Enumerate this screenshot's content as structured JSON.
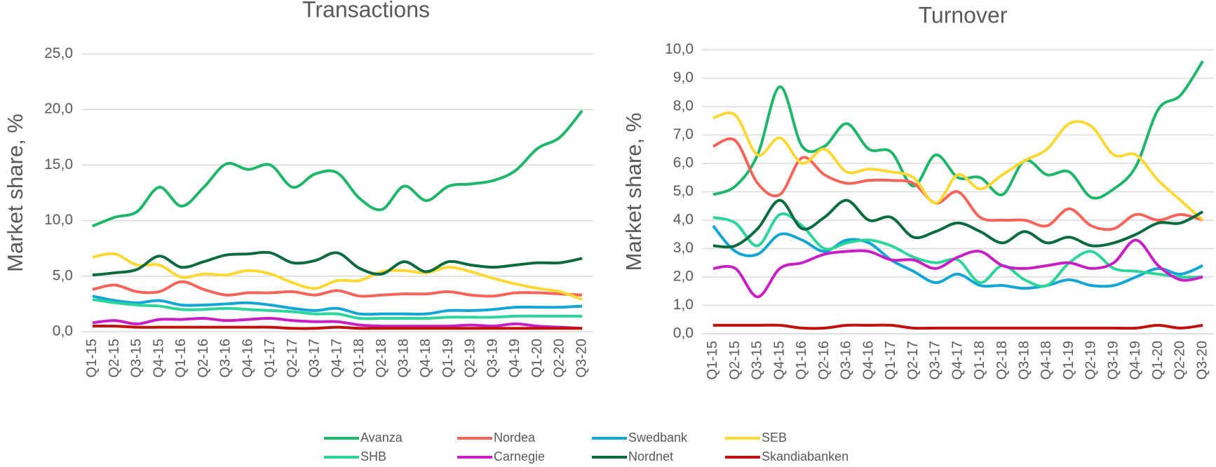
{
  "chart_data": [
    {
      "type": "line",
      "title": "Transactions",
      "y_label": "Market share, %",
      "categories": [
        "Q1-15",
        "Q2-15",
        "Q3-15",
        "Q4-15",
        "Q1-16",
        "Q2-16",
        "Q3-16",
        "Q4-16",
        "Q1-17",
        "Q2-17",
        "Q3-17",
        "Q4-17",
        "Q1-18",
        "Q2-18",
        "Q3-18",
        "Q4-18",
        "Q1-19",
        "Q2-19",
        "Q3-19",
        "Q4-19",
        "Q1-20",
        "Q2-20",
        "Q3-20"
      ],
      "ylim": [
        0,
        25
      ],
      "yticks": [
        {
          "value": 0,
          "label": "0,0"
        },
        {
          "value": 5,
          "label": "5,0"
        },
        {
          "value": 10,
          "label": "10,0"
        },
        {
          "value": 15,
          "label": "15,0"
        },
        {
          "value": 20,
          "label": "20,0"
        },
        {
          "value": 25,
          "label": "25,0"
        }
      ],
      "grid": true,
      "smooth": true,
      "series": [
        {
          "name": "Avanza",
          "color": "#1fb56b",
          "values": [
            9.5,
            10.3,
            10.8,
            13,
            11.3,
            13,
            15.1,
            14.6,
            15,
            13,
            14.2,
            14.3,
            12,
            11,
            13.1,
            11.8,
            13.1,
            13.3,
            13.6,
            14.5,
            16.5,
            17.5,
            19.9
          ]
        },
        {
          "name": "Nordea",
          "color": "#f4645a",
          "values": [
            3.8,
            4.2,
            3.6,
            3.6,
            4.5,
            3.8,
            3.3,
            3.5,
            3.5,
            3.6,
            3.3,
            3.7,
            3.2,
            3.3,
            3.4,
            3.4,
            3.6,
            3.3,
            3.2,
            3.5,
            3.5,
            3.4,
            3.3
          ]
        },
        {
          "name": "Swedbank",
          "color": "#13a6d4",
          "values": [
            3.2,
            2.8,
            2.6,
            2.8,
            2.4,
            2.4,
            2.5,
            2.6,
            2.4,
            2.1,
            1.9,
            2.1,
            1.6,
            1.6,
            1.6,
            1.6,
            1.9,
            1.9,
            2.0,
            2.2,
            2.2,
            2.2,
            2.3
          ]
        },
        {
          "name": "SEB",
          "color": "#fdd835",
          "values": [
            6.7,
            7.0,
            6.0,
            6.0,
            4.9,
            5.2,
            5.1,
            5.5,
            5.2,
            4.4,
            3.9,
            4.6,
            4.6,
            5.4,
            5.5,
            5.3,
            5.8,
            5.4,
            4.8,
            4.3,
            3.9,
            3.6,
            2.9
          ]
        },
        {
          "name": "SHB",
          "color": "#2ed59a",
          "values": [
            2.9,
            2.6,
            2.4,
            2.3,
            2.0,
            2.0,
            2.1,
            2.0,
            1.9,
            1.8,
            1.6,
            1.6,
            1.2,
            1.2,
            1.2,
            1.2,
            1.3,
            1.3,
            1.3,
            1.4,
            1.4,
            1.4,
            1.4
          ]
        },
        {
          "name": "Carnegie",
          "color": "#c71fc4",
          "values": [
            0.8,
            1.0,
            0.7,
            1.1,
            1.1,
            1.2,
            1.0,
            1.1,
            1.2,
            1.0,
            0.9,
            0.9,
            0.6,
            0.5,
            0.5,
            0.5,
            0.5,
            0.6,
            0.5,
            0.7,
            0.5,
            0.4,
            0.3
          ]
        },
        {
          "name": "Nordnet",
          "color": "#0b6b3f",
          "values": [
            5.1,
            5.3,
            5.6,
            6.8,
            5.8,
            6.3,
            6.9,
            7.0,
            7.1,
            6.2,
            6.4,
            7.1,
            5.7,
            5.2,
            6.3,
            5.4,
            6.3,
            6.0,
            5.8,
            6.0,
            6.2,
            6.2,
            6.6
          ]
        },
        {
          "name": "Skandiabanken",
          "color": "#c0120c",
          "values": [
            0.5,
            0.5,
            0.4,
            0.4,
            0.4,
            0.4,
            0.4,
            0.4,
            0.4,
            0.3,
            0.3,
            0.4,
            0.3,
            0.3,
            0.3,
            0.3,
            0.3,
            0.3,
            0.3,
            0.3,
            0.3,
            0.3,
            0.3
          ]
        }
      ]
    },
    {
      "type": "line",
      "title": "Turnover",
      "y_label": "Market share, %",
      "categories": [
        "Q1-15",
        "Q2-15",
        "Q3-15",
        "Q4-15",
        "Q1-16",
        "Q2-16",
        "Q3-16",
        "Q4-16",
        "Q1-17",
        "Q2-17",
        "Q3-17",
        "Q4-17",
        "Q1-18",
        "Q2-18",
        "Q3-18",
        "Q4-18",
        "Q1-19",
        "Q2-19",
        "Q3-19",
        "Q4-19",
        "Q1-20",
        "Q2-20",
        "Q3-20"
      ],
      "ylim": [
        0,
        10
      ],
      "yticks": [
        {
          "value": 0,
          "label": "0,0"
        },
        {
          "value": 1,
          "label": "1,0"
        },
        {
          "value": 2,
          "label": "2,0"
        },
        {
          "value": 3,
          "label": "3,0"
        },
        {
          "value": 4,
          "label": "4,0"
        },
        {
          "value": 5,
          "label": "5,0"
        },
        {
          "value": 6,
          "label": "6,0"
        },
        {
          "value": 7,
          "label": "7,0"
        },
        {
          "value": 8,
          "label": "8,0"
        },
        {
          "value": 9,
          "label": "9,0"
        },
        {
          "value": 10,
          "label": "10,0"
        }
      ],
      "grid": true,
      "smooth": true,
      "series": [
        {
          "name": "Avanza",
          "color": "#1fb56b",
          "values": [
            4.9,
            5.2,
            6.3,
            8.7,
            6.6,
            6.6,
            7.4,
            6.5,
            6.4,
            5.2,
            6.3,
            5.5,
            5.5,
            4.9,
            6.1,
            5.6,
            5.7,
            4.8,
            5.1,
            5.9,
            7.9,
            8.4,
            9.6
          ]
        },
        {
          "name": "Nordea",
          "color": "#f4645a",
          "values": [
            6.6,
            6.8,
            5.3,
            4.9,
            6.2,
            5.6,
            5.3,
            5.4,
            5.4,
            5.3,
            4.6,
            5.0,
            4.1,
            4.0,
            4.0,
            3.8,
            4.4,
            3.8,
            3.7,
            4.2,
            4.0,
            4.2,
            4.0
          ]
        },
        {
          "name": "Swedbank",
          "color": "#13a6d4",
          "values": [
            3.8,
            2.9,
            2.8,
            3.5,
            3.3,
            2.9,
            3.3,
            3.2,
            2.6,
            2.2,
            1.8,
            2.1,
            1.7,
            1.7,
            1.6,
            1.7,
            1.9,
            1.7,
            1.7,
            2.0,
            2.3,
            2.1,
            2.4
          ]
        },
        {
          "name": "SEB",
          "color": "#fdd835",
          "values": [
            7.6,
            7.7,
            6.3,
            6.9,
            6.0,
            6.5,
            5.7,
            5.8,
            5.7,
            5.5,
            4.6,
            5.6,
            5.1,
            5.6,
            6.1,
            6.5,
            7.4,
            7.3,
            6.3,
            6.3,
            5.4,
            4.7,
            4.0
          ]
        },
        {
          "name": "SHB",
          "color": "#2ed59a",
          "values": [
            4.1,
            3.9,
            3.1,
            4.2,
            3.8,
            3.0,
            3.2,
            3.3,
            3.1,
            2.7,
            2.5,
            2.6,
            1.8,
            2.4,
            1.9,
            1.7,
            2.5,
            2.9,
            2.3,
            2.2,
            2.1,
            2.0,
            2.0
          ]
        },
        {
          "name": "Carnegie",
          "color": "#c71fc4",
          "values": [
            2.3,
            2.3,
            1.3,
            2.3,
            2.5,
            2.8,
            2.9,
            2.9,
            2.6,
            2.6,
            2.3,
            2.7,
            2.9,
            2.4,
            2.3,
            2.4,
            2.5,
            2.3,
            2.5,
            3.3,
            2.4,
            1.9,
            2.0
          ]
        },
        {
          "name": "Nordnet",
          "color": "#0b6b3f",
          "values": [
            3.1,
            3.1,
            3.7,
            4.7,
            3.7,
            4.1,
            4.7,
            4.0,
            4.1,
            3.4,
            3.6,
            3.9,
            3.6,
            3.2,
            3.6,
            3.2,
            3.4,
            3.1,
            3.2,
            3.5,
            3.9,
            3.9,
            4.3
          ]
        },
        {
          "name": "Skandiabanken",
          "color": "#c0120c",
          "values": [
            0.3,
            0.3,
            0.3,
            0.3,
            0.2,
            0.2,
            0.3,
            0.3,
            0.3,
            0.2,
            0.2,
            0.2,
            0.2,
            0.2,
            0.2,
            0.2,
            0.2,
            0.2,
            0.2,
            0.2,
            0.3,
            0.2,
            0.3
          ]
        }
      ]
    }
  ]
}
